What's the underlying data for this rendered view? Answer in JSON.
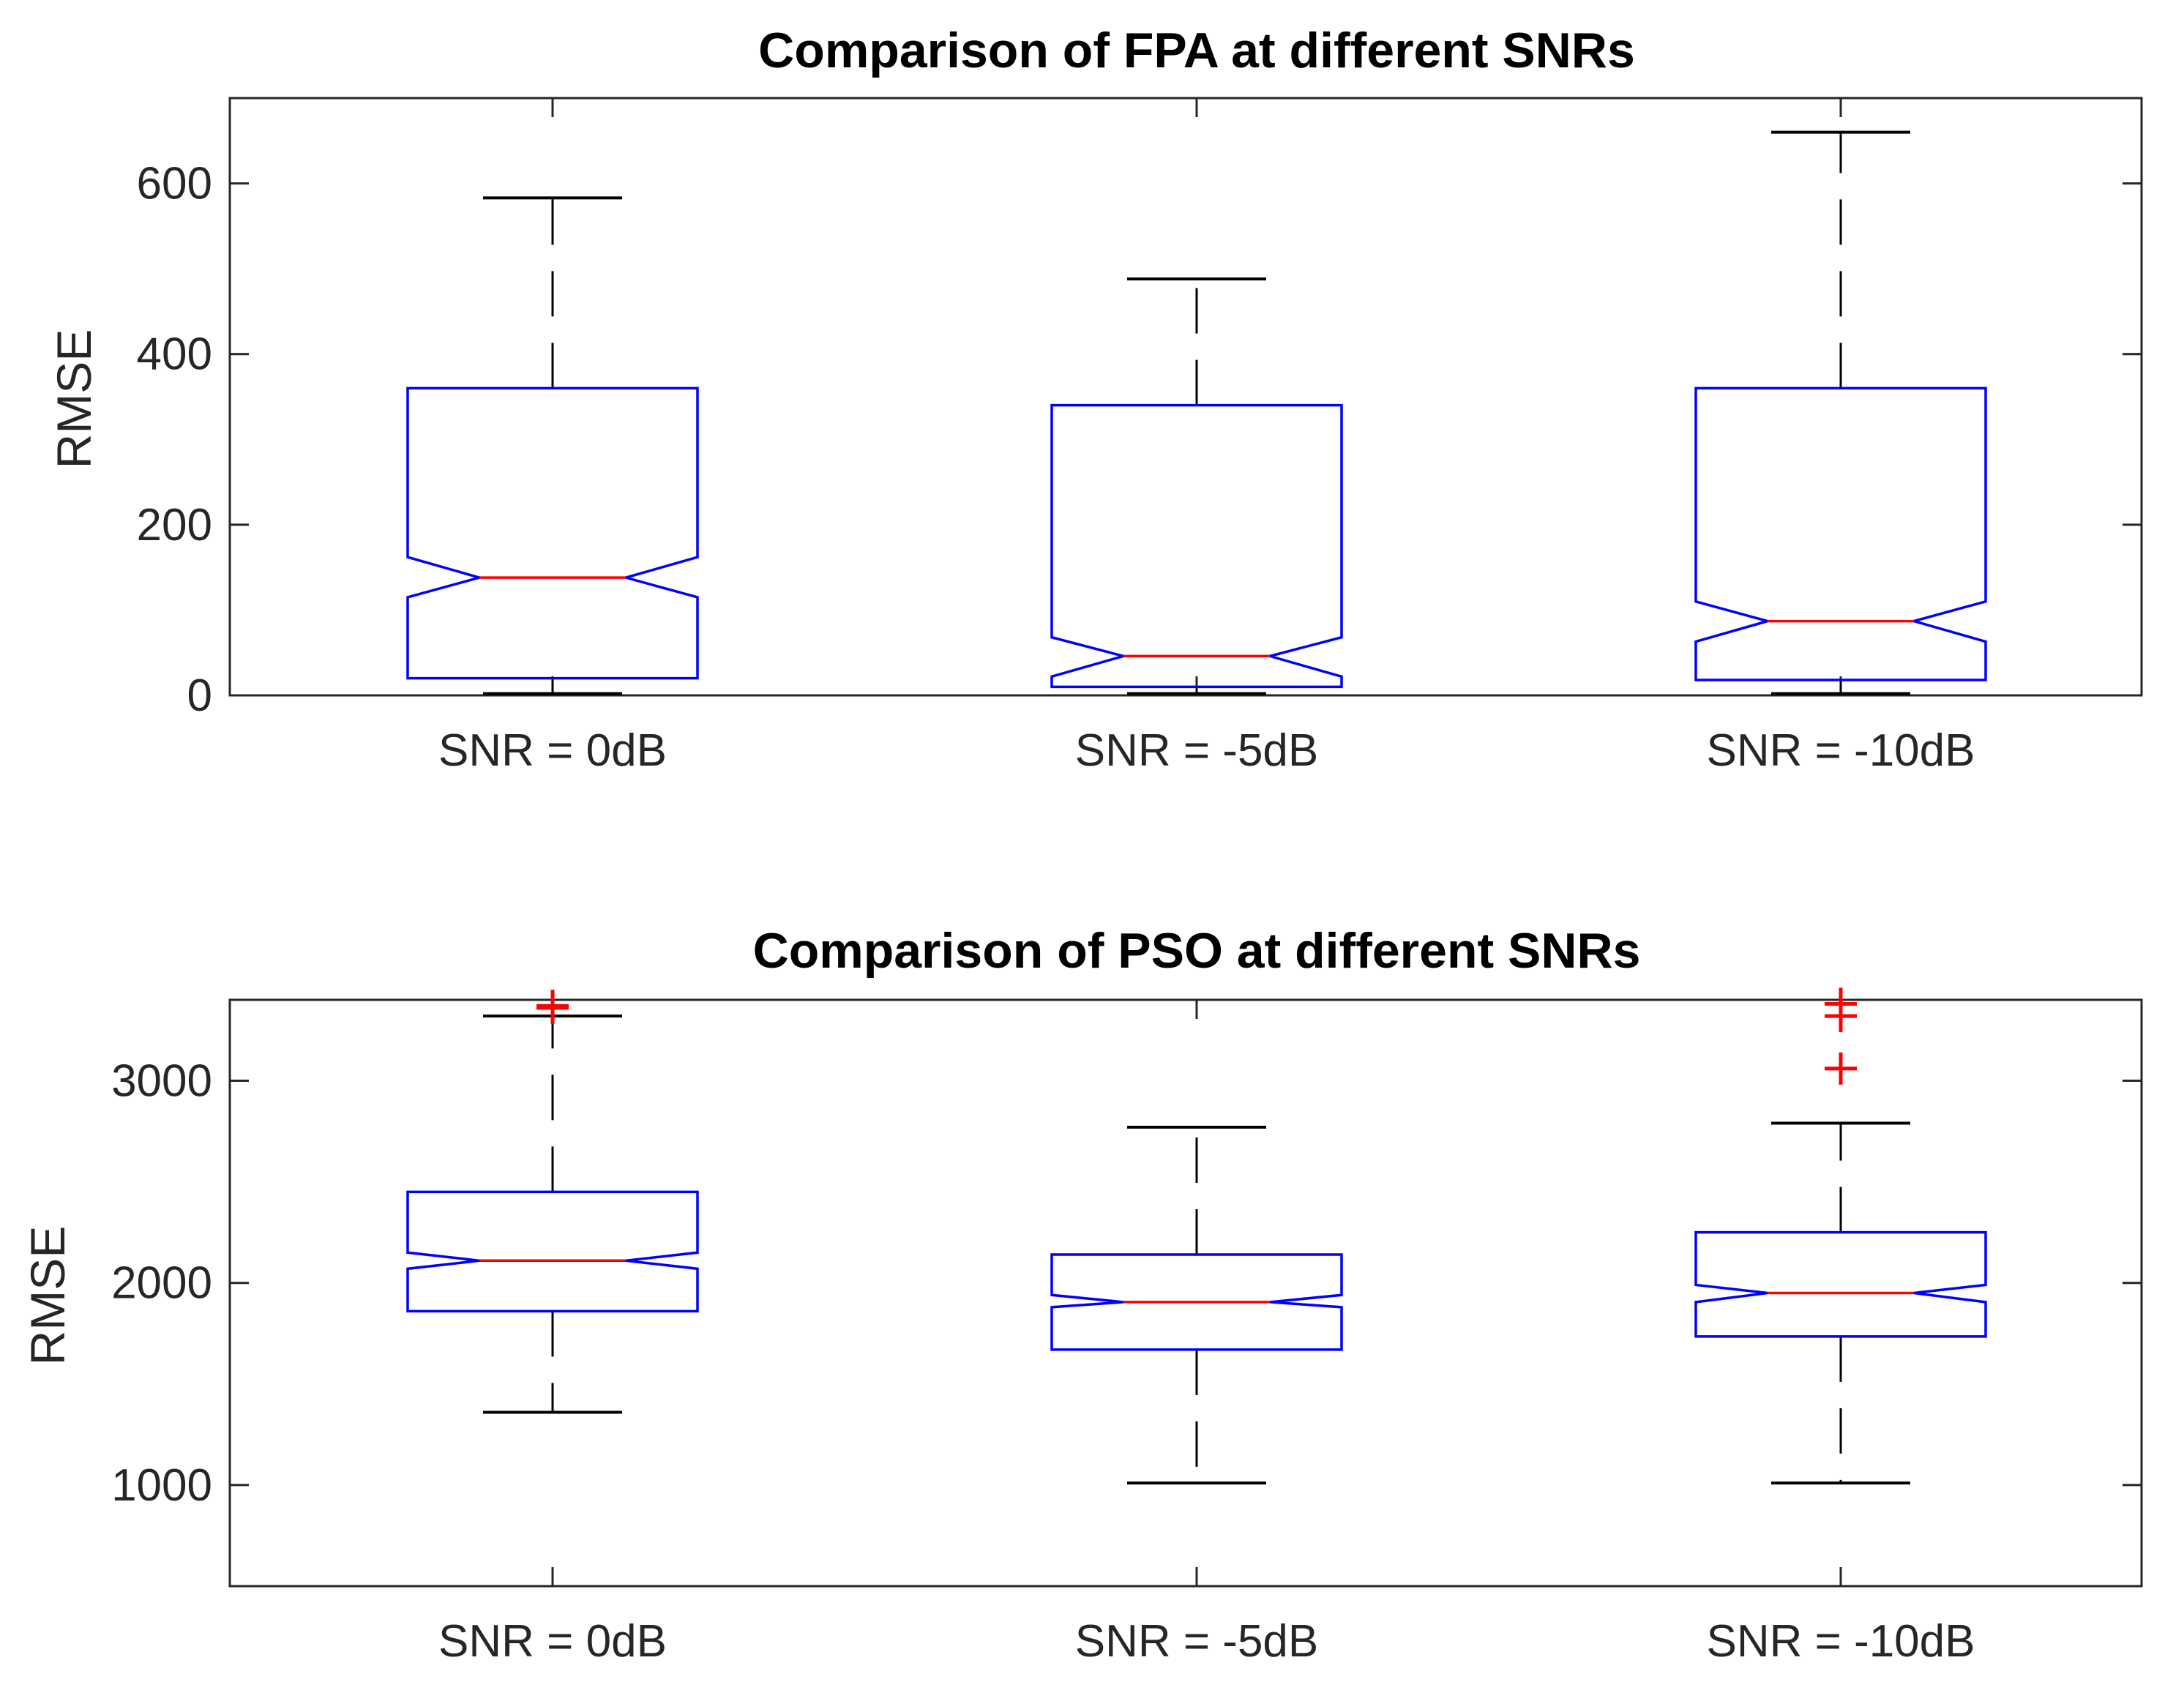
{
  "chart_data": [
    {
      "type": "boxplot",
      "notched": true,
      "title": "Comparison of FPA at different SNRs",
      "xlabel": "",
      "ylabel": "RMSE",
      "ylim": [
        0,
        700
      ],
      "yticks": [
        0,
        200,
        400,
        600
      ],
      "categories": [
        "SNR = 0dB",
        "SNR = -5dB",
        "SNR = -10dB"
      ],
      "boxes": [
        {
          "whisker_low": 2,
          "q1": 20,
          "notch_low": 115,
          "median": 138,
          "notch_high": 162,
          "q3": 360,
          "whisker_high": 583,
          "outliers": []
        },
        {
          "whisker_low": 2,
          "q1": 10,
          "notch_low": 22,
          "median": 46,
          "notch_high": 68,
          "q3": 340,
          "whisker_high": 488,
          "outliers": []
        },
        {
          "whisker_low": 2,
          "q1": 18,
          "notch_low": 63,
          "median": 87,
          "notch_high": 110,
          "q3": 360,
          "whisker_high": 660,
          "outliers": []
        }
      ]
    },
    {
      "type": "boxplot",
      "notched": true,
      "title": "Comparison of PSO at different SNRs",
      "xlabel": "",
      "ylabel": "RMSE",
      "ylim": [
        500,
        3400
      ],
      "yticks": [
        1000,
        2000,
        3000
      ],
      "categories": [
        "SNR = 0dB",
        "SNR = -5dB",
        "SNR = -10dB"
      ],
      "boxes": [
        {
          "whisker_low": 1360,
          "q1": 1860,
          "notch_low": 2070,
          "median": 2110,
          "notch_high": 2150,
          "q3": 2450,
          "whisker_high": 3320,
          "outliers": [
            3370,
            3360
          ]
        },
        {
          "whisker_low": 1010,
          "q1": 1670,
          "notch_low": 1880,
          "median": 1905,
          "notch_high": 1940,
          "q3": 2140,
          "whisker_high": 2770,
          "outliers": []
        },
        {
          "whisker_low": 1010,
          "q1": 1735,
          "notch_low": 1905,
          "median": 1950,
          "notch_high": 1990,
          "q3": 2250,
          "whisker_high": 2790,
          "outliers": [
            3380,
            3320,
            3060
          ]
        }
      ]
    }
  ],
  "colors": {
    "box": "#0000ff",
    "median": "#ff0000",
    "whisker": "#000000",
    "outlier": "#ff0000",
    "axis": "#262626",
    "title": "#000000"
  }
}
